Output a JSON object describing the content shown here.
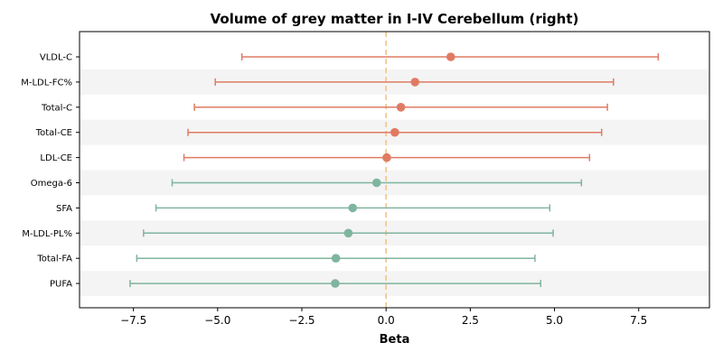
{
  "chart_data": {
    "type": "forest",
    "title": "Volume of grey matter in I-IV Cerebellum (right)",
    "xlabel": "Beta",
    "xlim": [
      -9.1,
      9.6
    ],
    "xticks": [
      -7.5,
      -5.0,
      -2.5,
      0.0,
      2.5,
      5.0,
      7.5
    ],
    "xtick_labels": [
      "−7.5",
      "−5.0",
      "−2.5",
      "0.0",
      "2.5",
      "5.0",
      "7.5"
    ],
    "reference_line": 0,
    "reference_color": "#f2c48a",
    "colors": {
      "positive": "#e07b63",
      "negative": "#7fb59e",
      "band": "#f4f4f4"
    },
    "rows": [
      {
        "label": "VLDL-C",
        "beta": 1.92,
        "low": -4.28,
        "high": 8.08,
        "group": "positive"
      },
      {
        "label": "M-LDL-FC%",
        "beta": 0.86,
        "low": -5.07,
        "high": 6.75,
        "group": "positive"
      },
      {
        "label": "Total-C",
        "beta": 0.44,
        "low": -5.69,
        "high": 6.57,
        "group": "positive"
      },
      {
        "label": "Total-CE",
        "beta": 0.26,
        "low": -5.88,
        "high": 6.4,
        "group": "positive"
      },
      {
        "label": "LDL-CE",
        "beta": 0.02,
        "low": -6.0,
        "high": 6.04,
        "group": "positive"
      },
      {
        "label": "Omega-6",
        "beta": -0.28,
        "low": -6.35,
        "high": 5.8,
        "group": "negative"
      },
      {
        "label": "SFA",
        "beta": -0.99,
        "low": -6.83,
        "high": 4.86,
        "group": "negative"
      },
      {
        "label": "M-LDL-PL%",
        "beta": -1.12,
        "low": -7.2,
        "high": 4.96,
        "group": "negative"
      },
      {
        "label": "Total-FA",
        "beta": -1.49,
        "low": -7.4,
        "high": 4.42,
        "group": "negative"
      },
      {
        "label": "PUFA",
        "beta": -1.51,
        "low": -7.6,
        "high": 4.59,
        "group": "negative"
      }
    ]
  }
}
